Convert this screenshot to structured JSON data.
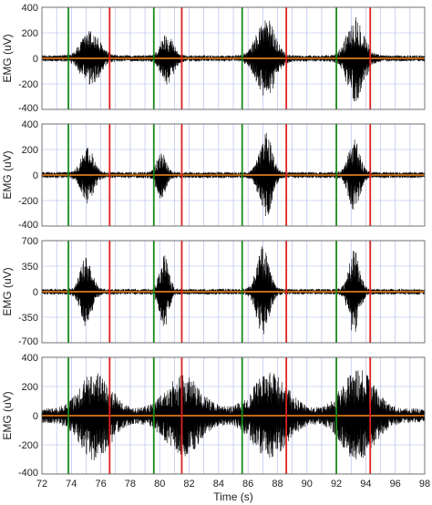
{
  "chart_data": {
    "type": "line",
    "xlabel": "Time (s)",
    "xlim": [
      72,
      98
    ],
    "xticks": [
      "72",
      "74",
      "76",
      "78",
      "80",
      "82",
      "84",
      "86",
      "88",
      "90",
      "92",
      "94",
      "96",
      "98"
    ],
    "grid": true,
    "colors": {
      "emg": "#000000",
      "baseline": "#ff8c1a",
      "onset": "#1a8a1a",
      "offset": "#e02020",
      "grid": "#aab4ee"
    },
    "markers": {
      "onsets": [
        73.8,
        79.6,
        85.6,
        92.0
      ],
      "offsets": [
        76.6,
        81.5,
        88.6,
        94.3
      ]
    },
    "panels": [
      {
        "ylabel": "EMG (uV)",
        "ylim": [
          -400,
          400
        ],
        "yticks": [
          "400",
          "200",
          "0",
          "-200",
          "-400"
        ],
        "bursts": [
          {
            "center": 75.3,
            "width": 2.4,
            "amplitude": 200
          },
          {
            "center": 80.5,
            "width": 1.6,
            "amplitude": 180
          },
          {
            "center": 87.2,
            "width": 2.4,
            "amplitude": 300
          },
          {
            "center": 93.3,
            "width": 2.2,
            "amplitude": 320
          }
        ],
        "noise": 25
      },
      {
        "ylabel": "EMG (uV)",
        "ylim": [
          -400,
          400
        ],
        "yticks": [
          "400",
          "200",
          "0",
          "-200",
          "-400"
        ],
        "bursts": [
          {
            "center": 75.1,
            "width": 1.6,
            "amplitude": 200
          },
          {
            "center": 80.1,
            "width": 1.2,
            "amplitude": 170
          },
          {
            "center": 87.2,
            "width": 1.6,
            "amplitude": 330
          },
          {
            "center": 93.2,
            "width": 1.5,
            "amplitude": 260
          }
        ],
        "noise": 25
      },
      {
        "ylabel": "EMG (uV)",
        "ylim": [
          -700,
          700
        ],
        "yticks": [
          "700",
          "350",
          "0",
          "-350",
          "-700"
        ],
        "bursts": [
          {
            "center": 75.0,
            "width": 1.5,
            "amplitude": 450
          },
          {
            "center": 80.3,
            "width": 1.2,
            "amplitude": 480
          },
          {
            "center": 87.0,
            "width": 1.6,
            "amplitude": 600
          },
          {
            "center": 93.2,
            "width": 1.4,
            "amplitude": 550
          }
        ],
        "noise": 40
      },
      {
        "ylabel": "EMG (uV)",
        "ylim": [
          -400,
          400
        ],
        "yticks": [
          "400",
          "200",
          "0",
          "-200",
          "-400"
        ],
        "bursts": [
          {
            "center": 75.6,
            "width": 4.0,
            "amplitude": 260
          },
          {
            "center": 81.6,
            "width": 4.5,
            "amplitude": 230
          },
          {
            "center": 87.5,
            "width": 4.5,
            "amplitude": 250
          },
          {
            "center": 93.5,
            "width": 4.2,
            "amplitude": 270
          }
        ],
        "noise": 50
      }
    ]
  }
}
